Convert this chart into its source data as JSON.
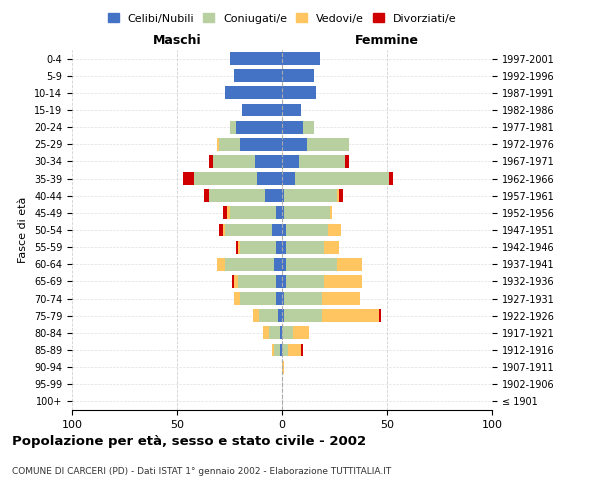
{
  "age_groups": [
    "100+",
    "95-99",
    "90-94",
    "85-89",
    "80-84",
    "75-79",
    "70-74",
    "65-69",
    "60-64",
    "55-59",
    "50-54",
    "45-49",
    "40-44",
    "35-39",
    "30-34",
    "25-29",
    "20-24",
    "15-19",
    "10-14",
    "5-9",
    "0-4"
  ],
  "birth_years": [
    "≤ 1901",
    "1902-1906",
    "1907-1911",
    "1912-1916",
    "1917-1921",
    "1922-1926",
    "1927-1931",
    "1932-1936",
    "1937-1941",
    "1942-1946",
    "1947-1951",
    "1952-1956",
    "1957-1961",
    "1962-1966",
    "1967-1971",
    "1972-1976",
    "1977-1981",
    "1982-1986",
    "1987-1991",
    "1992-1996",
    "1997-2001"
  ],
  "colors": {
    "celibi": "#4472C4",
    "coniugati": "#b8cfa0",
    "vedovi": "#ffc561",
    "divorziati": "#d00000"
  },
  "maschi": {
    "celibi": [
      0,
      0,
      0,
      1,
      1,
      2,
      3,
      3,
      4,
      3,
      5,
      3,
      8,
      12,
      13,
      20,
      22,
      19,
      27,
      23,
      25
    ],
    "coniugati": [
      0,
      0,
      0,
      3,
      5,
      9,
      17,
      18,
      23,
      17,
      22,
      22,
      27,
      30,
      20,
      10,
      3,
      0,
      0,
      0,
      0
    ],
    "vedovi": [
      0,
      0,
      0,
      1,
      3,
      3,
      3,
      2,
      4,
      1,
      1,
      1,
      0,
      0,
      0,
      1,
      0,
      0,
      0,
      0,
      0
    ],
    "divorziati": [
      0,
      0,
      0,
      0,
      0,
      0,
      0,
      1,
      0,
      1,
      2,
      2,
      2,
      5,
      2,
      0,
      0,
      0,
      0,
      0,
      0
    ]
  },
  "femmine": {
    "celibi": [
      0,
      0,
      0,
      0,
      0,
      1,
      1,
      2,
      2,
      2,
      2,
      1,
      1,
      6,
      8,
      12,
      10,
      9,
      16,
      15,
      18
    ],
    "coniugati": [
      0,
      0,
      0,
      3,
      5,
      18,
      18,
      18,
      24,
      18,
      20,
      22,
      25,
      45,
      22,
      20,
      5,
      0,
      0,
      0,
      0
    ],
    "vedovi": [
      0,
      0,
      1,
      6,
      8,
      27,
      18,
      18,
      12,
      7,
      6,
      1,
      1,
      0,
      0,
      0,
      0,
      0,
      0,
      0,
      0
    ],
    "divorziati": [
      0,
      0,
      0,
      1,
      0,
      1,
      0,
      0,
      0,
      0,
      0,
      0,
      2,
      2,
      2,
      0,
      0,
      0,
      0,
      0,
      0
    ]
  },
  "xlim": 100,
  "title": "Popolazione per età, sesso e stato civile - 2002",
  "subtitle": "COMUNE DI CARCERI (PD) - Dati ISTAT 1° gennaio 2002 - Elaborazione TUTTITALIA.IT",
  "ylabel": "Fasce di età",
  "xlabel_maschi": "Maschi",
  "xlabel_femmine": "Femmine",
  "legend_labels": [
    "Celibi/Nubili",
    "Coniugati/e",
    "Vedovi/e",
    "Divorziati/e"
  ],
  "background_color": "#ffffff",
  "grid_color": "#cccccc"
}
